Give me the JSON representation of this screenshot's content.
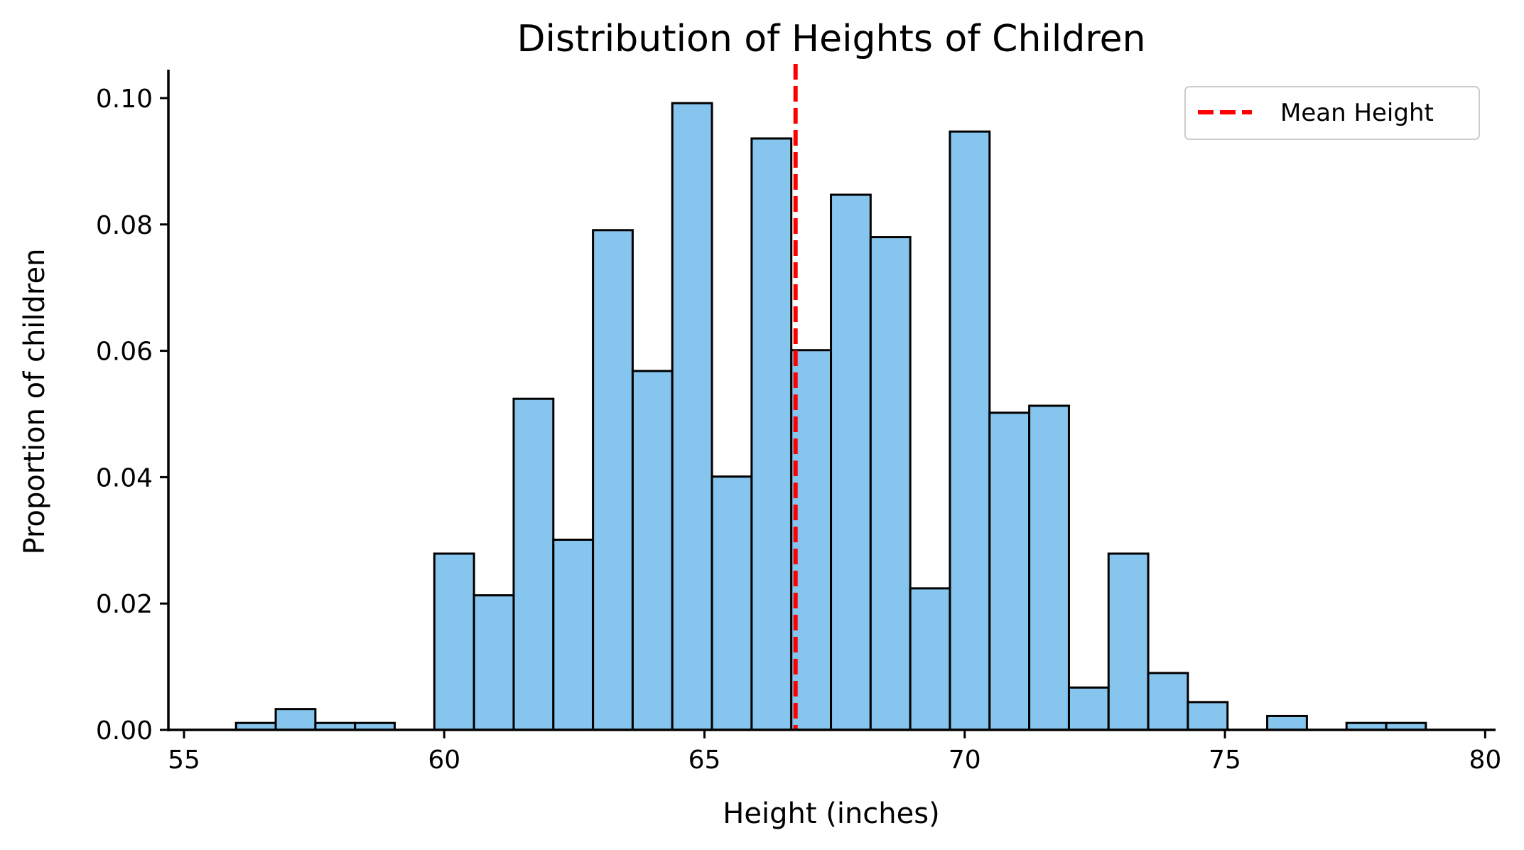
{
  "chart_data": {
    "type": "bar",
    "title": "Distribution of Heights of Children",
    "xlabel": "Height (inches)",
    "ylabel": "Proportion of children",
    "xlim": [
      54.7,
      80.2
    ],
    "ylim": [
      0,
      0.1045
    ],
    "x_ticks": [
      55,
      60,
      65,
      70,
      75,
      80
    ],
    "x_tick_labels": [
      "55",
      "60",
      "65",
      "70",
      "75",
      "80"
    ],
    "y_ticks": [
      0.0,
      0.02,
      0.04,
      0.06,
      0.08,
      0.1
    ],
    "y_tick_labels": [
      "0.00",
      "0.02",
      "0.04",
      "0.06",
      "0.08",
      "0.10"
    ],
    "grid": false,
    "bar_color": "#85c5ee",
    "edge_color": "#000000",
    "bin_width": 0.762,
    "bin_starts": [
      56.0,
      56.762,
      57.524,
      58.286,
      59.048,
      59.81,
      60.572,
      61.334,
      62.096,
      62.858,
      63.62,
      64.382,
      65.144,
      65.906,
      66.668,
      67.43,
      68.192,
      68.954,
      69.716,
      70.478,
      71.24,
      72.002,
      72.764,
      73.526,
      74.288,
      75.05,
      75.812,
      76.574,
      77.336,
      78.098
    ],
    "values": [
      0.0011,
      0.0033,
      0.0011,
      0.0011,
      0.0,
      0.0279,
      0.0213,
      0.0524,
      0.0301,
      0.0791,
      0.0568,
      0.0992,
      0.0401,
      0.0936,
      0.0601,
      0.0847,
      0.078,
      0.0224,
      0.0947,
      0.0502,
      0.0513,
      0.0067,
      0.0279,
      0.009,
      0.0044,
      0.0,
      0.0022,
      0.0,
      0.0011,
      0.0011
    ],
    "mean_line": {
      "x": 66.75,
      "label": "Mean Height",
      "color": "#ff0000",
      "style": "dashed"
    },
    "legend": {
      "position": "top-right",
      "entries": [
        "Mean Height"
      ]
    }
  }
}
